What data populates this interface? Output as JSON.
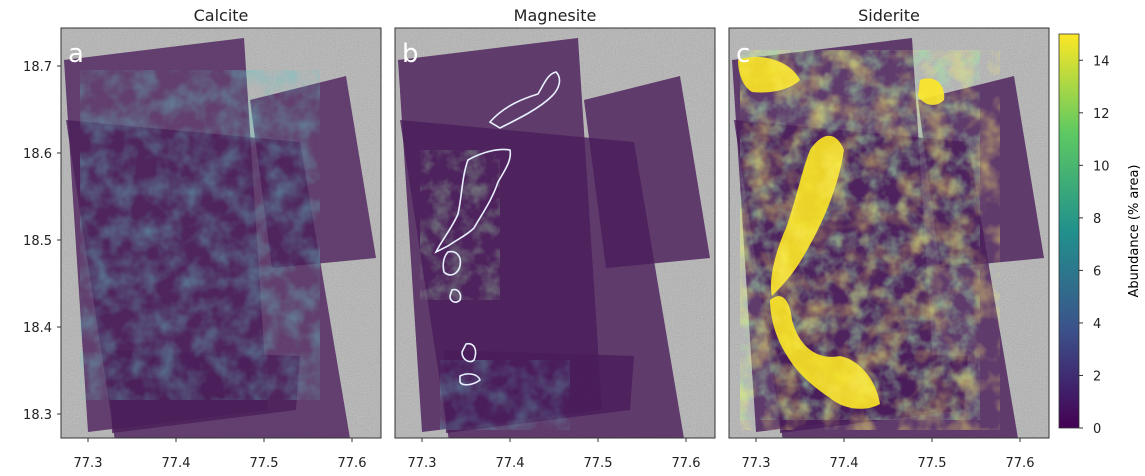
{
  "chart_data": [
    {
      "type": "heatmap",
      "title": "Calcite",
      "panel_label": "a",
      "x_ticks": [
        "77.3",
        "77.4",
        "77.5",
        "77.6"
      ],
      "y_ticks": [
        "18.7",
        "18.6",
        "18.5",
        "18.4",
        "18.3"
      ],
      "x_range": [
        77.27,
        77.63
      ],
      "y_range": [
        18.28,
        18.735
      ]
    },
    {
      "type": "heatmap",
      "title": "Magnesite",
      "panel_label": "b",
      "x_ticks": [
        "77.3",
        "77.4",
        "77.5",
        "77.6"
      ],
      "x_range": [
        77.27,
        77.63
      ],
      "y_range": [
        18.28,
        18.735
      ]
    },
    {
      "type": "heatmap",
      "title": "Siderite",
      "panel_label": "c",
      "x_ticks": [
        "77.3",
        "77.4",
        "77.5",
        "77.6"
      ],
      "x_range": [
        77.27,
        77.63
      ],
      "y_range": [
        18.28,
        18.735
      ]
    }
  ],
  "colorbar": {
    "label": "Abundance (% area)",
    "ticks": [
      "0",
      "2",
      "4",
      "6",
      "8",
      "10",
      "12",
      "14"
    ],
    "range": [
      0,
      15
    ],
    "colormap": [
      "#440154",
      "#3b528b",
      "#21918c",
      "#5ec962",
      "#fde725"
    ]
  },
  "colors": {
    "basemap": "#b8b8b8",
    "overlay_low": "#4a1d5a"
  }
}
